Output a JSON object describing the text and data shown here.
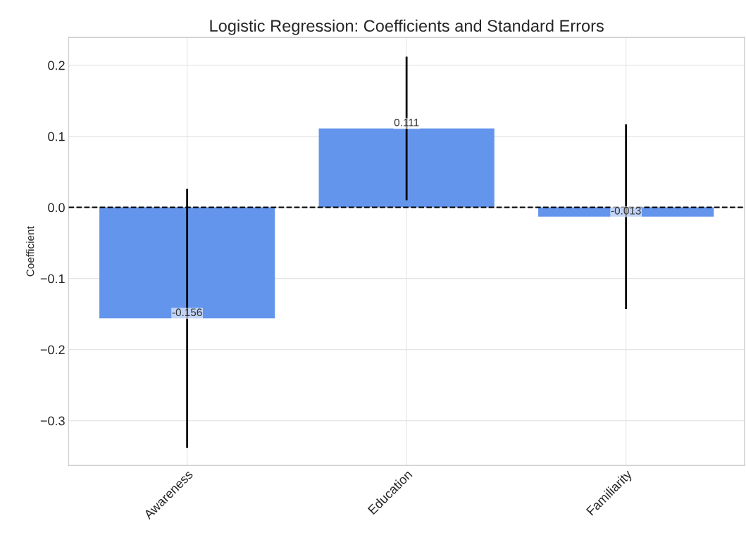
{
  "chart_data": {
    "type": "bar",
    "title": "Logistic Regression: Coefficients and Standard Errors",
    "ylabel": "Coefficient",
    "categories": [
      "Awareness",
      "Education",
      "Familiarity"
    ],
    "values": [
      -0.156,
      0.111,
      -0.013
    ],
    "errors": [
      0.182,
      0.101,
      0.13
    ],
    "color": "#6495ed",
    "data_labels": true,
    "ylim": [
      -0.363,
      0.239
    ],
    "yticks": [
      {
        "value": -0.3,
        "label": "−0.3"
      },
      {
        "value": -0.2,
        "label": "−0.2"
      },
      {
        "value": -0.1,
        "label": "−0.1"
      },
      {
        "value": 0,
        "label": "0.0"
      },
      0.1,
      0.2
    ],
    "ref_lines": [
      {
        "axis": "y",
        "value": 0,
        "color": "#000000",
        "line_style": "dashed"
      }
    ],
    "grid": true
  }
}
